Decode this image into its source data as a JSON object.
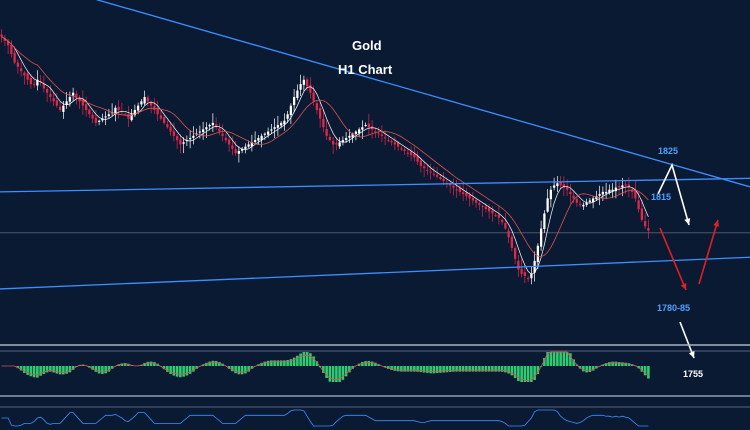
{
  "chart_data": {
    "type": "candlestick",
    "title": "Gold",
    "subtitle": "H1 Chart",
    "price_range": [
      1745,
      1905
    ],
    "levels": [
      "1825",
      "1815",
      "1780-85",
      "1755"
    ],
    "level_values": [
      1825,
      1815,
      1782.5,
      1755
    ],
    "current_price": 1797,
    "closes": [
      1888,
      1886,
      1884,
      1880,
      1876,
      1874,
      1872,
      1870,
      1868,
      1866,
      1866,
      1868,
      1867,
      1864,
      1862,
      1860,
      1858,
      1856,
      1854,
      1856,
      1858,
      1860,
      1862,
      1860,
      1858,
      1856,
      1854,
      1852,
      1850,
      1848,
      1849,
      1850,
      1851,
      1852,
      1853,
      1855,
      1854,
      1853,
      1852,
      1850,
      1852,
      1854,
      1856,
      1858,
      1860,
      1858,
      1856,
      1854,
      1852,
      1850,
      1848,
      1846,
      1844,
      1842,
      1840,
      1838,
      1839,
      1840,
      1841,
      1842,
      1843,
      1844,
      1845,
      1846,
      1847,
      1848,
      1846,
      1844,
      1842,
      1840,
      1838,
      1836,
      1834,
      1835,
      1836,
      1837,
      1838,
      1839,
      1840,
      1841,
      1842,
      1843,
      1844,
      1845,
      1846,
      1847,
      1848,
      1849,
      1852,
      1856,
      1860,
      1863,
      1866,
      1868,
      1865,
      1862,
      1858,
      1854,
      1850,
      1846,
      1842,
      1840,
      1838,
      1838,
      1839,
      1840,
      1841,
      1842,
      1843,
      1844,
      1845,
      1846,
      1847,
      1846,
      1845,
      1844,
      1843,
      1842,
      1841,
      1840,
      1839,
      1838,
      1837,
      1836,
      1835,
      1834,
      1833,
      1832,
      1830,
      1828,
      1827,
      1826,
      1825,
      1824,
      1823,
      1822,
      1821,
      1820,
      1819,
      1818,
      1817,
      1816,
      1815,
      1814,
      1813,
      1812,
      1811,
      1810,
      1809,
      1808,
      1807,
      1806,
      1805,
      1804,
      1802,
      1799,
      1795,
      1790,
      1785,
      1780,
      1778,
      1777,
      1776,
      1778,
      1784,
      1791,
      1799,
      1806,
      1813,
      1817,
      1819,
      1820,
      1819,
      1818,
      1817,
      1815,
      1813,
      1811,
      1810,
      1810,
      1811,
      1812,
      1813,
      1814,
      1815,
      1816,
      1816,
      1817,
      1817,
      1818,
      1818,
      1819,
      1819,
      1818,
      1816,
      1813,
      1808,
      1803,
      1800,
      1798
    ],
    "resistance_line": {
      "start": [
        0,
        1918
      ],
      "end": [
        220,
        1823
      ]
    },
    "channel_upper": {
      "start": [
        0,
        1816
      ],
      "end": [
        220,
        1822
      ]
    },
    "channel_lower": {
      "start": [
        0,
        1771
      ],
      "end": [
        220,
        1785
      ]
    },
    "indicator_1": "MACD histogram",
    "indicator_2": "oscillator line"
  },
  "colors": {
    "background": "#0b1a33",
    "up_candle": "#ffffff",
    "down_candle": "#e0284a",
    "trendline": "#3c8fff",
    "ma_fast": "#ffffff",
    "ma_slow": "#d9534f",
    "macd_bar": "#2ecc71",
    "arrow_white": "#ffffff",
    "arrow_red": "#e02020",
    "level_text": "#4aa3ff"
  }
}
